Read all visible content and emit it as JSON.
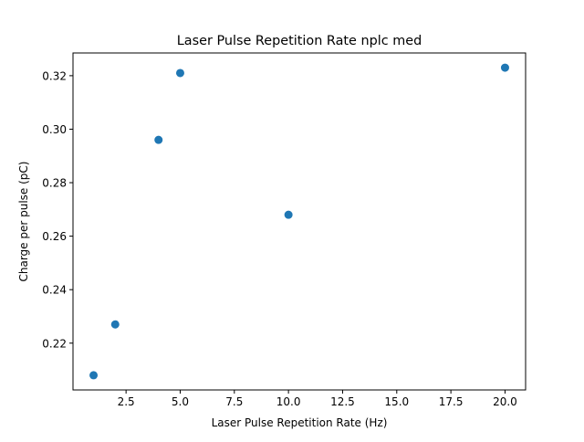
{
  "chart_data": {
    "type": "scatter",
    "title": "Laser Pulse Repetition Rate nplc med",
    "xlabel": "Laser Pulse Repetition Rate (Hz)",
    "ylabel": "Charge per pulse (pC)",
    "x": [
      1,
      2,
      4,
      5,
      10,
      20
    ],
    "y": [
      0.208,
      0.227,
      0.296,
      0.321,
      0.268,
      0.323
    ],
    "xlim": [
      0.05,
      20.95
    ],
    "ylim": [
      0.2025,
      0.3285
    ],
    "xticks": [
      2.5,
      5.0,
      7.5,
      10.0,
      12.5,
      15.0,
      17.5,
      20.0
    ],
    "xtick_labels": [
      "2.5",
      "5.0",
      "7.5",
      "10.0",
      "12.5",
      "15.0",
      "17.5",
      "20.0"
    ],
    "yticks": [
      0.22,
      0.24,
      0.26,
      0.28,
      0.3,
      0.32
    ],
    "ytick_labels": [
      "0.22",
      "0.24",
      "0.26",
      "0.28",
      "0.30",
      "0.32"
    ],
    "grid": false,
    "marker_color": "#1f77b4"
  }
}
